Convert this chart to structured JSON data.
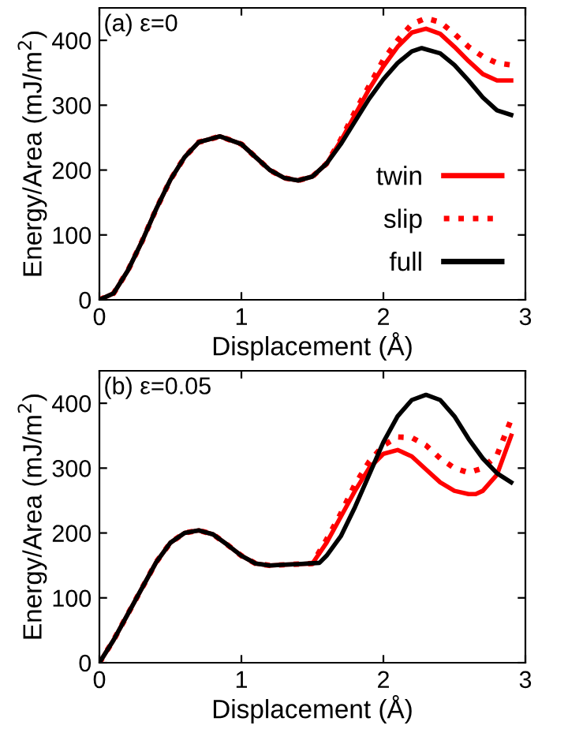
{
  "chart_data": [
    {
      "type": "line",
      "title": "(a) ε=0",
      "xlabel": "Displacement (Å)",
      "ylabel": "Energy/Area (mJ/m$^{2}$)",
      "xlim": [
        0,
        3
      ],
      "ylim": [
        0,
        450
      ],
      "xticks": [
        0,
        1,
        2,
        3
      ],
      "yticks": [
        0,
        100,
        200,
        300,
        400
      ],
      "legend": "bottom right",
      "grid": false,
      "series": [
        {
          "name": "twin",
          "color": "#ff0000",
          "line_style": "solid",
          "x": [
            0,
            0.1,
            0.2,
            0.3,
            0.4,
            0.5,
            0.6,
            0.7,
            0.85,
            1.0,
            1.1,
            1.2,
            1.3,
            1.4,
            1.5,
            1.6,
            1.7,
            1.8,
            1.9,
            2.0,
            2.1,
            2.2,
            2.3,
            2.4,
            2.5,
            2.6,
            2.7,
            2.8,
            2.9
          ],
          "values": [
            0,
            10,
            45,
            90,
            140,
            185,
            220,
            243,
            252,
            240,
            220,
            200,
            188,
            184,
            190,
            210,
            245,
            285,
            325,
            360,
            390,
            412,
            418,
            410,
            390,
            368,
            348,
            338,
            338
          ]
        },
        {
          "name": "slip",
          "color": "#ff0000",
          "line_style": "dotted",
          "x": [
            0,
            0.1,
            0.2,
            0.3,
            0.4,
            0.5,
            0.6,
            0.7,
            0.85,
            1.0,
            1.1,
            1.2,
            1.3,
            1.4,
            1.5,
            1.6,
            1.7,
            1.8,
            1.9,
            2.0,
            2.1,
            2.2,
            2.3,
            2.4,
            2.5,
            2.6,
            2.7,
            2.8,
            2.9
          ],
          "values": [
            0,
            10,
            45,
            90,
            140,
            185,
            220,
            243,
            252,
            240,
            220,
            200,
            188,
            184,
            190,
            210,
            247,
            290,
            330,
            370,
            400,
            425,
            434,
            428,
            410,
            390,
            375,
            365,
            362
          ]
        },
        {
          "name": "full",
          "color": "#000000",
          "line_style": "solid",
          "x": [
            0,
            0.1,
            0.2,
            0.3,
            0.4,
            0.5,
            0.6,
            0.7,
            0.85,
            1.0,
            1.1,
            1.2,
            1.3,
            1.4,
            1.5,
            1.6,
            1.7,
            1.8,
            1.9,
            2.0,
            2.1,
            2.2,
            2.27,
            2.4,
            2.5,
            2.6,
            2.7,
            2.8,
            2.9
          ],
          "values": [
            0,
            10,
            45,
            90,
            140,
            185,
            220,
            243,
            252,
            240,
            220,
            200,
            188,
            184,
            190,
            210,
            240,
            275,
            310,
            340,
            365,
            383,
            388,
            380,
            362,
            338,
            312,
            292,
            285
          ]
        }
      ]
    },
    {
      "type": "line",
      "title": "(b) ε=0.05",
      "xlabel": "Displacement (Å)",
      "ylabel": "Energy/Area (mJ/m$^{2}$)",
      "xlim": [
        0,
        3
      ],
      "ylim": [
        0,
        450
      ],
      "xticks": [
        0,
        1,
        2,
        3
      ],
      "yticks": [
        0,
        100,
        200,
        300,
        400
      ],
      "grid": false,
      "series": [
        {
          "color": "#ff0000",
          "line_style": "solid",
          "x": [
            0,
            0.1,
            0.2,
            0.3,
            0.4,
            0.5,
            0.6,
            0.7,
            0.8,
            0.9,
            1.0,
            1.1,
            1.2,
            1.3,
            1.4,
            1.5,
            1.6,
            1.7,
            1.8,
            1.9,
            2.0,
            2.1,
            2.2,
            2.3,
            2.4,
            2.5,
            2.6,
            2.65,
            2.7,
            2.8,
            2.9
          ],
          "values": [
            0,
            35,
            75,
            115,
            155,
            185,
            200,
            204,
            198,
            182,
            165,
            153,
            150,
            151,
            152,
            153,
            185,
            225,
            265,
            300,
            322,
            328,
            318,
            298,
            278,
            265,
            260,
            260,
            265,
            290,
            350
          ]
        },
        {
          "color": "#ff0000",
          "line_style": "dotted",
          "x": [
            0,
            0.1,
            0.2,
            0.3,
            0.4,
            0.5,
            0.6,
            0.7,
            0.8,
            0.9,
            1.0,
            1.1,
            1.2,
            1.3,
            1.4,
            1.5,
            1.6,
            1.7,
            1.8,
            1.9,
            2.0,
            2.1,
            2.2,
            2.3,
            2.4,
            2.5,
            2.6,
            2.7,
            2.8,
            2.9
          ],
          "values": [
            0,
            35,
            75,
            115,
            155,
            185,
            200,
            204,
            198,
            182,
            165,
            153,
            150,
            151,
            152,
            153,
            190,
            230,
            275,
            310,
            335,
            348,
            347,
            335,
            315,
            300,
            293,
            300,
            320,
            375
          ]
        },
        {
          "color": "#000000",
          "line_style": "solid",
          "x": [
            0,
            0.1,
            0.2,
            0.3,
            0.4,
            0.5,
            0.6,
            0.7,
            0.8,
            0.9,
            1.0,
            1.1,
            1.2,
            1.3,
            1.4,
            1.55,
            1.6,
            1.7,
            1.8,
            1.9,
            2.0,
            2.1,
            2.2,
            2.3,
            2.4,
            2.5,
            2.6,
            2.7,
            2.8,
            2.9
          ],
          "values": [
            0,
            35,
            75,
            115,
            155,
            185,
            200,
            204,
            198,
            182,
            165,
            153,
            150,
            151,
            152,
            154,
            165,
            195,
            240,
            290,
            340,
            380,
            405,
            413,
            405,
            380,
            345,
            315,
            292,
            278
          ]
        }
      ]
    }
  ]
}
